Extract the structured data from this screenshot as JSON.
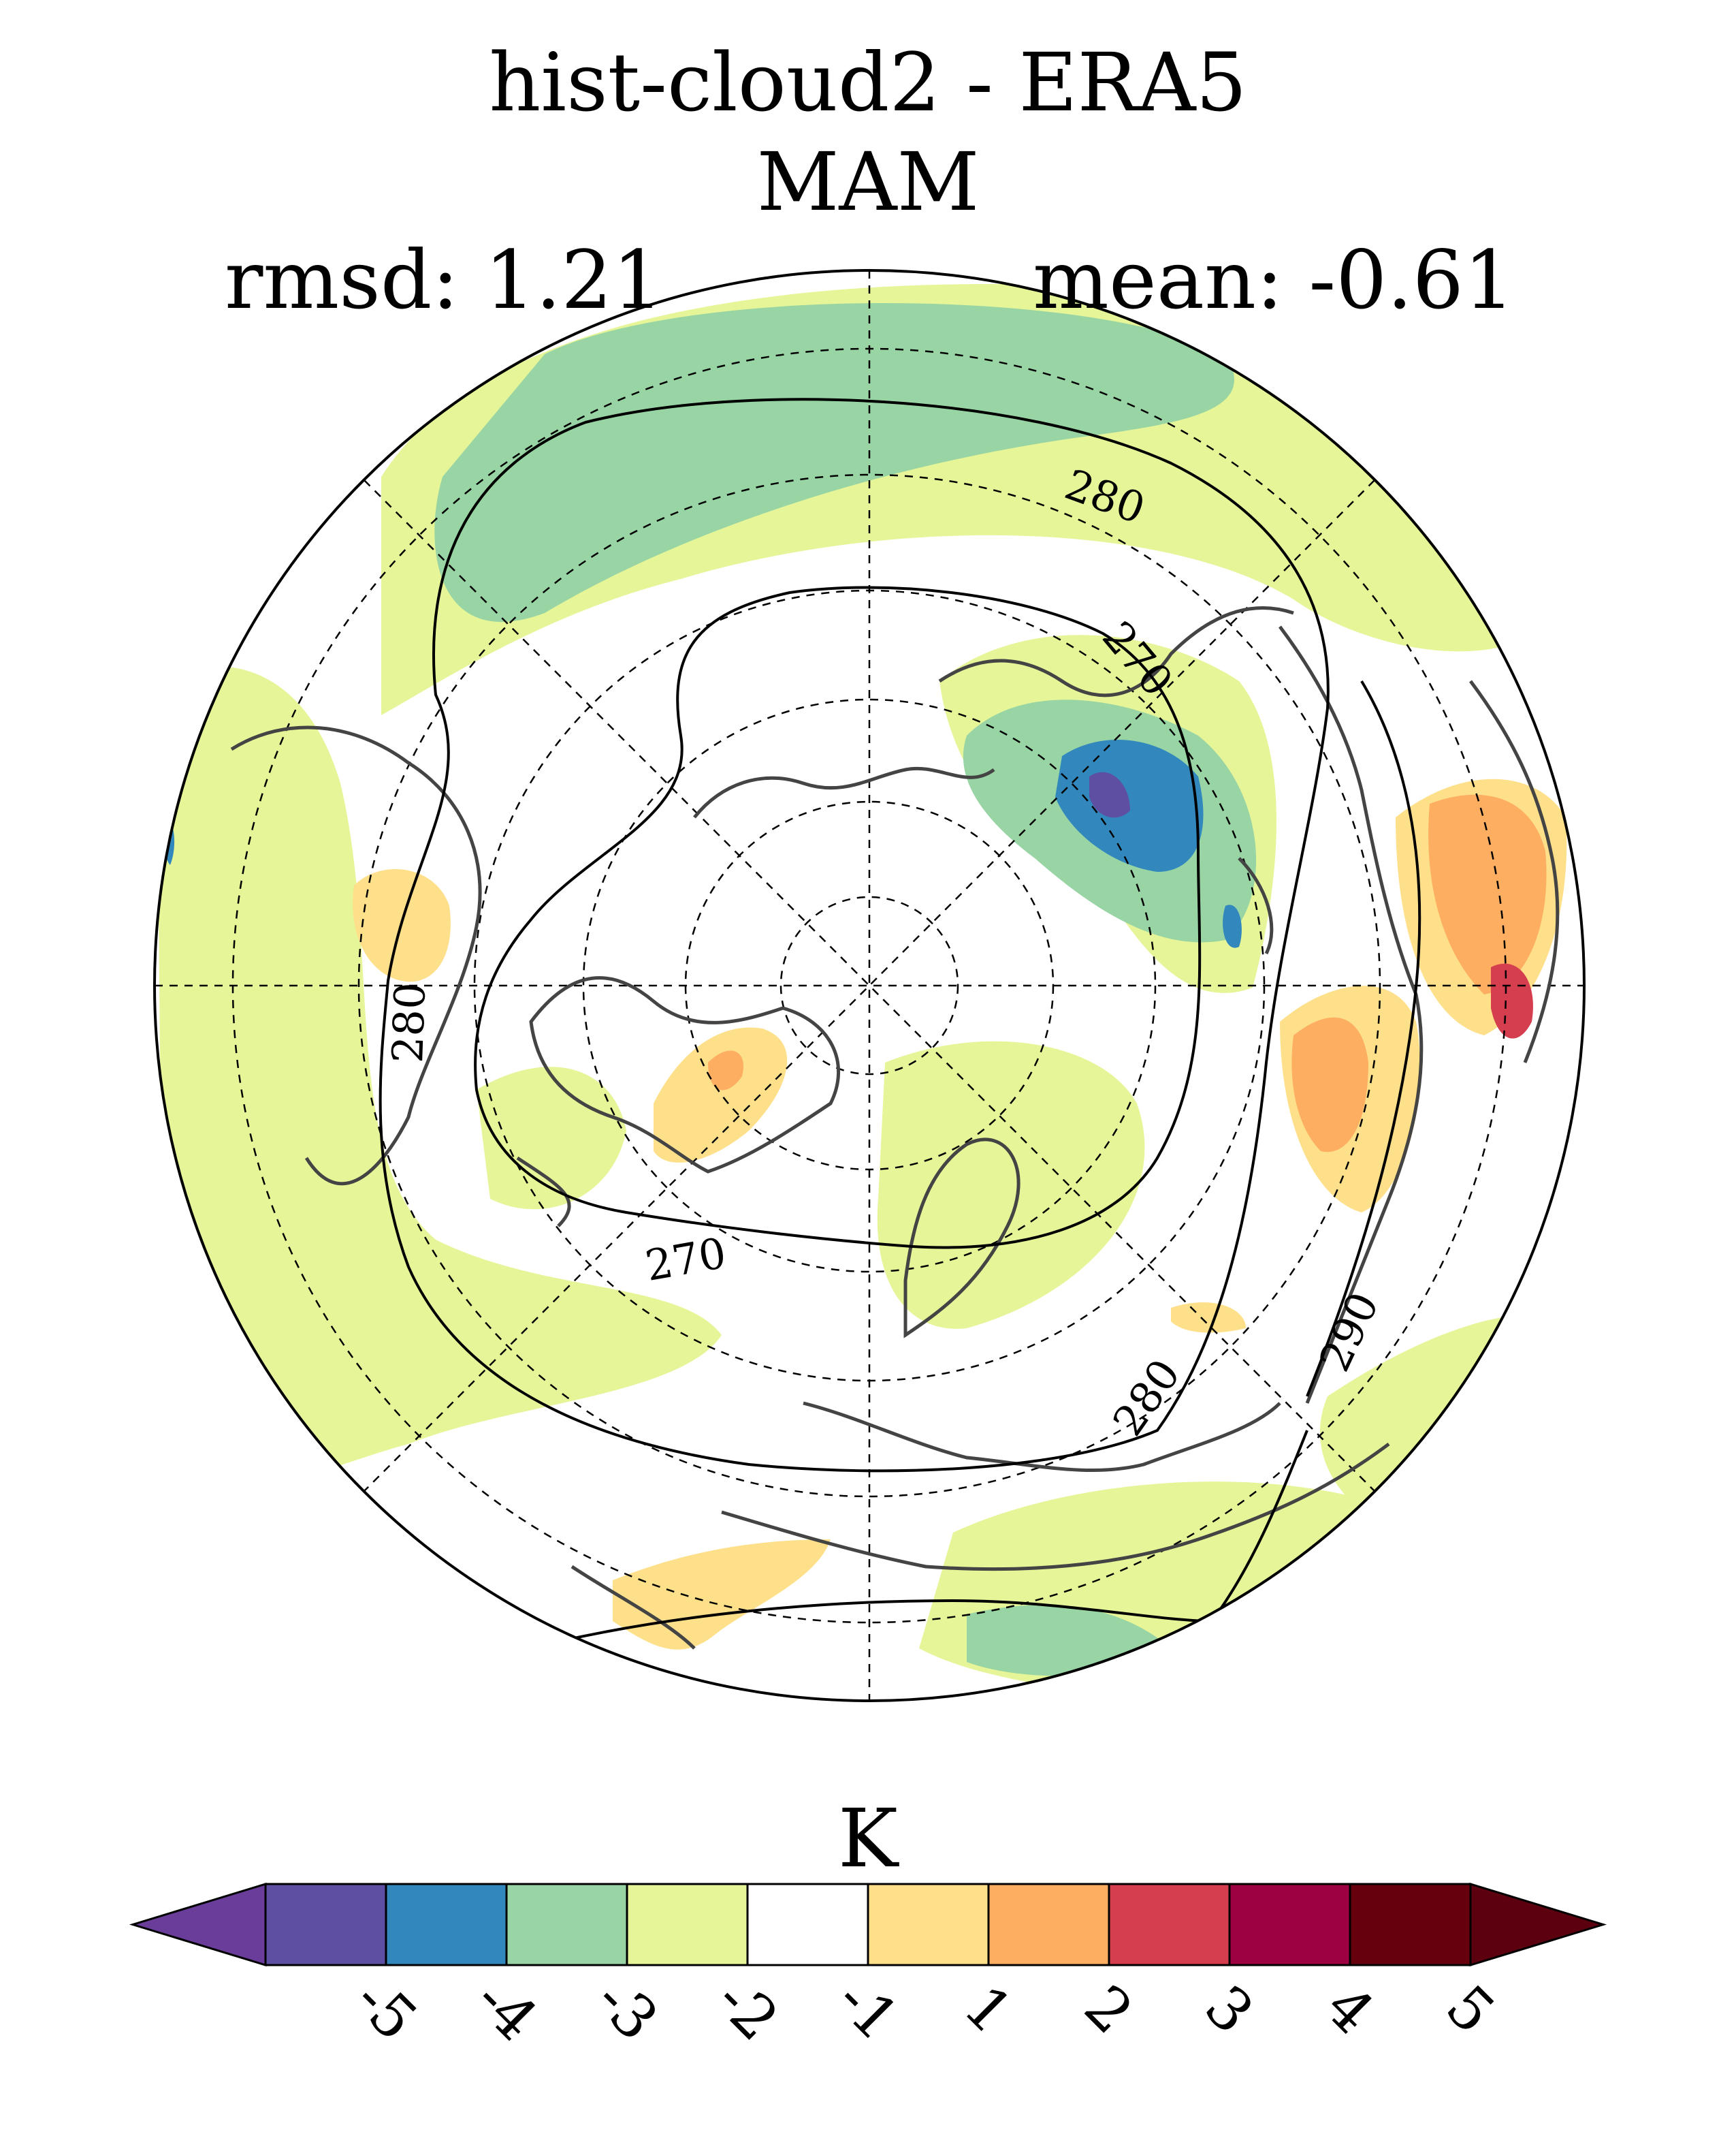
{
  "figure": {
    "title_line1": "hist-cloud2 - ERA5",
    "title_line2": "MAM",
    "rmsd_label": "rmsd: 1.21",
    "mean_label": "mean: -0.61"
  },
  "contour_labels": [
    "280",
    "270",
    "280",
    "270",
    "280",
    "290"
  ],
  "colorbar": {
    "units": "K",
    "tick_labels": [
      "-5",
      "-4",
      "-3",
      "-2",
      "-1",
      "1",
      "2",
      "3",
      "4",
      "5"
    ],
    "colors": [
      "#5e4fa2",
      "#3288bd",
      "#99d5a4",
      "#e6f598",
      "#ffffff",
      "#fee08b",
      "#fdae61",
      "#d53e4f",
      "#9e0142",
      "#67000d"
    ],
    "under_color": "#6a3d9a",
    "over_color": "#5c0010"
  },
  "chart_data": {
    "type": "heatmap",
    "projection": "north polar stereographic",
    "title": "hist-cloud2 - ERA5",
    "subtitle": "MAM",
    "rmsd": 1.21,
    "mean": -0.61,
    "units": "K",
    "levels": [
      -5,
      -4,
      -3,
      -2,
      -1,
      1,
      2,
      3,
      4,
      5
    ],
    "contour_levels": [
      270,
      280,
      290
    ],
    "grid": true
  }
}
